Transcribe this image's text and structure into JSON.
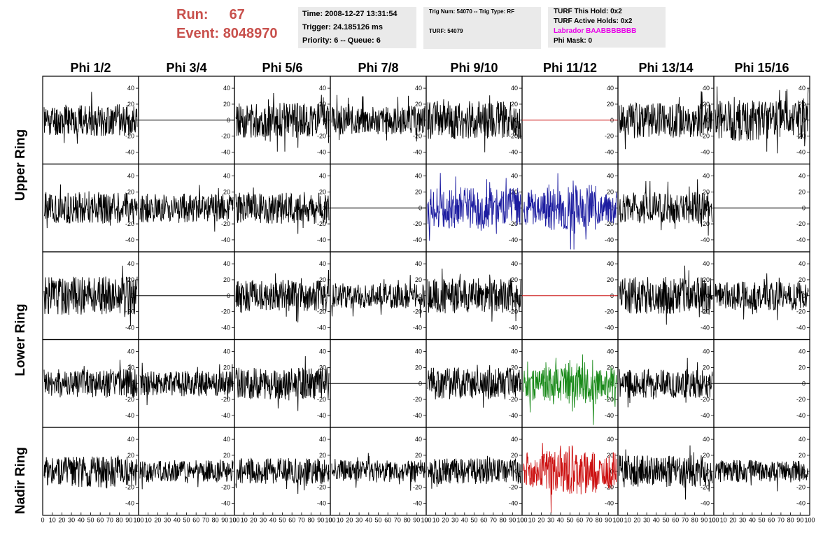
{
  "header": {
    "run_label": "Run:",
    "run_value": "67",
    "event_label": "Event:",
    "event_value": "8048970",
    "time": "Time: 2008-12-27 13:31:54",
    "trigger": "Trigger: 24.185126 ms",
    "priority": "Priority: 6 -- Queue: 6",
    "trig_num": "Trig Num: 54070 -- Trig Type: RF",
    "turf": "TURF: 54079",
    "turf_this_hold": "TURF This Hold: 0x2",
    "turf_active_holds": "TURF Active Holds: 0x2",
    "labrador": "Labrador BAABBBBBBB",
    "phi_mask": "Phi Mask: 0"
  },
  "colors": {
    "header_red": "#c8504c",
    "labrador_magenta": "#e800e8",
    "trace_black": "#000000",
    "trace_blue": "#1c1ca0",
    "trace_green": "#1a8a1a",
    "trace_red": "#cc1111",
    "flat_red": "#cc1111"
  },
  "chart_data": {
    "type": "line",
    "columns": [
      "Phi 1/2",
      "Phi 3/4",
      "Phi 5/6",
      "Phi 7/8",
      "Phi 9/10",
      "Phi 11/12",
      "Phi 13/14",
      "Phi 15/16"
    ],
    "ring_labels": [
      "Upper Ring",
      "Lower Ring",
      "Nadir Ring"
    ],
    "xlim": [
      0,
      100
    ],
    "ylim": [
      -55,
      55
    ],
    "x_ticks": [
      "0",
      "10",
      "20",
      "30",
      "40",
      "50",
      "60",
      "70",
      "80",
      "90",
      "100"
    ],
    "y_ticks": [
      "40",
      "20",
      "0",
      "-20",
      "-40"
    ],
    "y_tick_values": [
      40,
      20,
      0,
      -20,
      -40
    ],
    "rows": [
      {
        "cells": [
          {
            "kind": "noise",
            "amplitude": 20,
            "color": "black",
            "seed": 11
          },
          {
            "kind": "flat",
            "color": "black"
          },
          {
            "kind": "noise",
            "amplitude": 22,
            "color": "black",
            "seed": 13
          },
          {
            "kind": "noise",
            "amplitude": 18,
            "color": "black",
            "seed": 14
          },
          {
            "kind": "noise",
            "amplitude": 24,
            "color": "black",
            "seed": 15
          },
          {
            "kind": "flat",
            "color": "red"
          },
          {
            "kind": "noise",
            "amplitude": 22,
            "color": "black",
            "seed": 17
          },
          {
            "kind": "noise",
            "amplitude": 26,
            "color": "black",
            "seed": 18
          }
        ]
      },
      {
        "cells": [
          {
            "kind": "noise",
            "amplitude": 20,
            "color": "black",
            "seed": 21
          },
          {
            "kind": "noise",
            "amplitude": 18,
            "color": "black",
            "seed": 22
          },
          {
            "kind": "noise",
            "amplitude": 20,
            "color": "black",
            "seed": 23
          },
          {
            "kind": "flat",
            "color": "black"
          },
          {
            "kind": "noise",
            "amplitude": 26,
            "color": "blue",
            "seed": 25
          },
          {
            "kind": "noise",
            "amplitude": 30,
            "color": "blue",
            "seed": 26,
            "burst": true
          },
          {
            "kind": "noise",
            "amplitude": 20,
            "color": "black",
            "seed": 27
          },
          {
            "kind": "flat",
            "color": "black"
          }
        ]
      },
      {
        "cells": [
          {
            "kind": "noise",
            "amplitude": 24,
            "color": "black",
            "seed": 31
          },
          {
            "kind": "flat",
            "color": "black"
          },
          {
            "kind": "noise",
            "amplitude": 20,
            "color": "black",
            "seed": 33
          },
          {
            "kind": "noise",
            "amplitude": 16,
            "color": "black",
            "seed": 34
          },
          {
            "kind": "noise",
            "amplitude": 22,
            "color": "black",
            "seed": 35
          },
          {
            "kind": "flat",
            "color": "red"
          },
          {
            "kind": "noise",
            "amplitude": 24,
            "color": "black",
            "seed": 37
          },
          {
            "kind": "noise",
            "amplitude": 18,
            "color": "black",
            "seed": 38
          }
        ]
      },
      {
        "cells": [
          {
            "kind": "noise",
            "amplitude": 18,
            "color": "black",
            "seed": 41
          },
          {
            "kind": "noise",
            "amplitude": 16,
            "color": "black",
            "seed": 42
          },
          {
            "kind": "noise",
            "amplitude": 20,
            "color": "black",
            "seed": 43
          },
          {
            "kind": "flat",
            "color": "black"
          },
          {
            "kind": "noise",
            "amplitude": 20,
            "color": "black",
            "seed": 45
          },
          {
            "kind": "noise",
            "amplitude": 28,
            "color": "green",
            "seed": 46,
            "burst": true
          },
          {
            "kind": "noise",
            "amplitude": 18,
            "color": "black",
            "seed": 47
          },
          {
            "kind": "flat",
            "color": "black"
          }
        ]
      },
      {
        "cells": [
          {
            "kind": "noise",
            "amplitude": 20,
            "color": "black",
            "seed": 51
          },
          {
            "kind": "noise",
            "amplitude": 14,
            "color": "black",
            "seed": 52
          },
          {
            "kind": "noise",
            "amplitude": 16,
            "color": "black",
            "seed": 53
          },
          {
            "kind": "noise",
            "amplitude": 14,
            "color": "black",
            "seed": 54
          },
          {
            "kind": "noise",
            "amplitude": 16,
            "color": "black",
            "seed": 55
          },
          {
            "kind": "noise",
            "amplitude": 30,
            "color": "red",
            "seed": 56,
            "burst": true
          },
          {
            "kind": "noise",
            "amplitude": 20,
            "color": "black",
            "seed": 57
          },
          {
            "kind": "noise",
            "amplitude": 14,
            "color": "black",
            "seed": 58
          }
        ]
      }
    ]
  }
}
